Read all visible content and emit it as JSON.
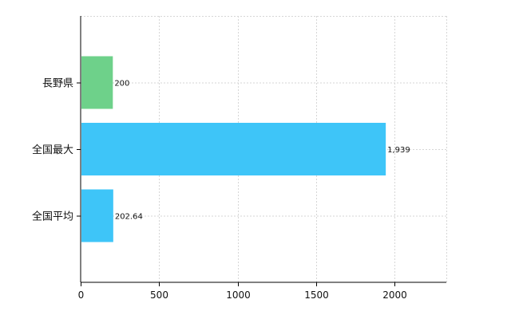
{
  "chart_data": {
    "type": "bar",
    "orientation": "horizontal",
    "categories": [
      "長野県",
      "全国最大",
      "全国平均"
    ],
    "values": [
      200,
      1939,
      202.64
    ],
    "data_labels": [
      "200",
      "1,939",
      "202.64"
    ],
    "bar_colors": [
      "#6ed18a",
      "#3ec5f8",
      "#3ec5f8"
    ],
    "xlim": [
      0,
      2330
    ],
    "x_ticks": [
      0,
      500,
      1000,
      1500,
      2000
    ],
    "x_tick_labels": [
      "0",
      "500",
      "1000",
      "1500",
      "2000"
    ],
    "grid": true,
    "title": "",
    "xlabel": "",
    "ylabel": ""
  }
}
